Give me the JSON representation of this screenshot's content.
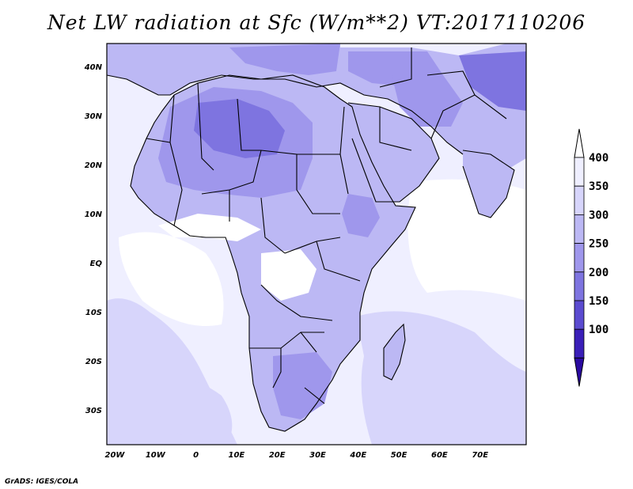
{
  "title": "Net LW radiation at Sfc (W/m**2) VT:2017110206",
  "credit": "GrADS: IGES/COLA",
  "axes": {
    "lon_labels": [
      "20W",
      "10W",
      "0",
      "10E",
      "20E",
      "30E",
      "40E",
      "50E",
      "60E",
      "70E"
    ],
    "lat_labels": [
      "40N",
      "30N",
      "20N",
      "10N",
      "EQ",
      "10S",
      "20S",
      "30S"
    ]
  },
  "colorbar": {
    "labels": [
      "400",
      "350",
      "300",
      "250",
      "200",
      "150",
      "100"
    ],
    "colors": [
      "#efefff",
      "#d7d5fb",
      "#bcb8f4",
      "#9f97ec",
      "#7e74e0",
      "#5b4bd0",
      "#3a1fb8"
    ],
    "top_arrow_color": "#ffffff",
    "bottom_arrow_color": "#2a0aa0"
  },
  "map_colors": {
    "background": "#efefff",
    "light": "#d7d5fb",
    "medium": "#bcb8f4",
    "dark": "#9f97ec",
    "darkest": "#7e74e0",
    "outline": "#000000"
  }
}
